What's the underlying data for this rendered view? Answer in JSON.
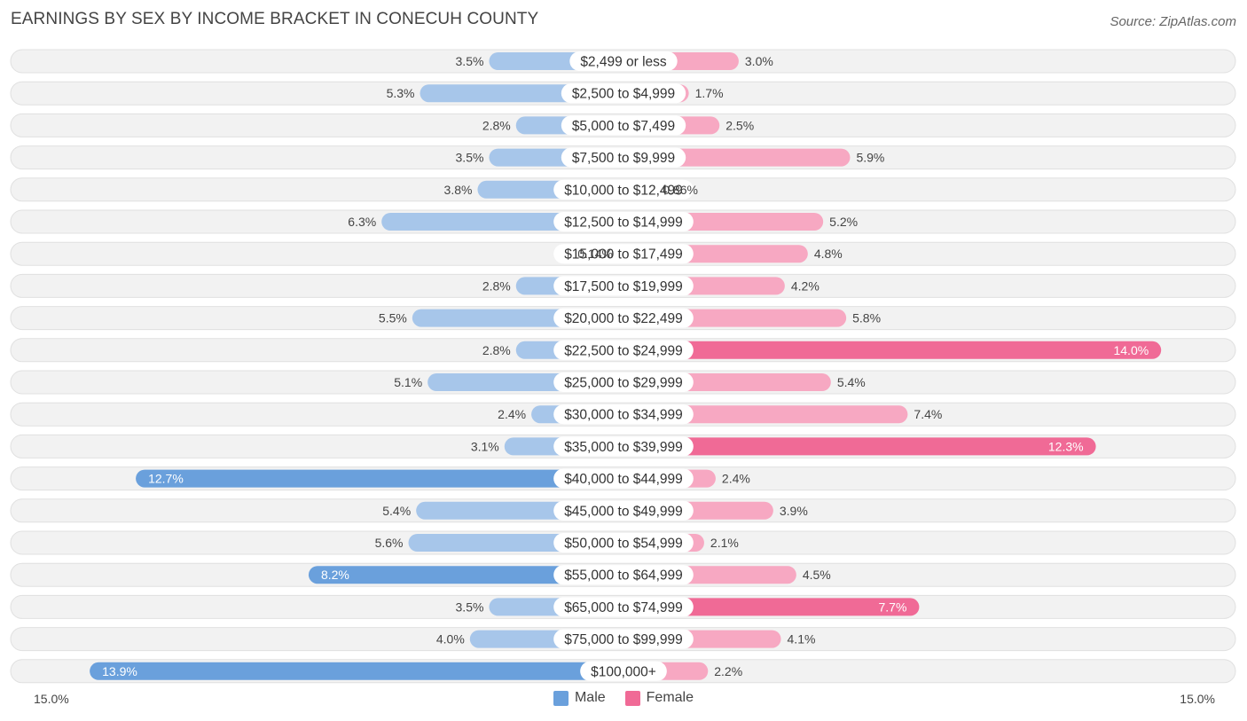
{
  "title": "EARNINGS BY SEX BY INCOME BRACKET IN CONECUH COUNTY",
  "source": "Source: ZipAtlas.com",
  "colors": {
    "male": "#6aa0dc",
    "male_light": "#a7c6ea",
    "female": "#f06a96",
    "female_light": "#f7a8c2"
  },
  "chart_data": {
    "type": "bar",
    "orientation": "horizontal-diverging",
    "categories": [
      "$2,499 or less",
      "$2,500 to $4,999",
      "$5,000 to $7,499",
      "$7,500 to $9,999",
      "$10,000 to $12,499",
      "$12,500 to $14,999",
      "$15,000 to $17,499",
      "$17,500 to $19,999",
      "$20,000 to $22,499",
      "$22,500 to $24,999",
      "$25,000 to $29,999",
      "$30,000 to $34,999",
      "$35,000 to $39,999",
      "$40,000 to $44,999",
      "$45,000 to $49,999",
      "$50,000 to $54,999",
      "$55,000 to $64,999",
      "$65,000 to $74,999",
      "$75,000 to $99,999",
      "$100,000+"
    ],
    "series": [
      {
        "name": "Male",
        "values": [
          3.5,
          5.3,
          2.8,
          3.5,
          3.8,
          6.3,
          0.14,
          2.8,
          5.5,
          2.8,
          5.1,
          2.4,
          3.1,
          12.7,
          5.4,
          5.6,
          8.2,
          3.5,
          4.0,
          13.9
        ],
        "labels": [
          "3.5%",
          "5.3%",
          "2.8%",
          "3.5%",
          "3.8%",
          "6.3%",
          "0.14%",
          "2.8%",
          "5.5%",
          "2.8%",
          "5.1%",
          "2.4%",
          "3.1%",
          "12.7%",
          "5.4%",
          "5.6%",
          "8.2%",
          "3.5%",
          "4.0%",
          "13.9%"
        ]
      },
      {
        "name": "Female",
        "values": [
          3.0,
          1.7,
          2.5,
          5.9,
          0.86,
          5.2,
          4.8,
          4.2,
          5.8,
          14.0,
          5.4,
          7.4,
          12.3,
          2.4,
          3.9,
          2.1,
          4.5,
          7.7,
          4.1,
          2.2
        ],
        "labels": [
          "3.0%",
          "1.7%",
          "2.5%",
          "5.9%",
          "0.86%",
          "5.2%",
          "4.8%",
          "4.2%",
          "5.8%",
          "14.0%",
          "5.4%",
          "7.4%",
          "12.3%",
          "2.4%",
          "3.9%",
          "2.1%",
          "4.5%",
          "7.7%",
          "4.1%",
          "2.2%"
        ]
      }
    ],
    "xlim": [
      -15.0,
      15.0
    ],
    "axis_labels": {
      "left": "15.0%",
      "right": "15.0%"
    },
    "legend": {
      "position": "bottom-center",
      "items": [
        "Male",
        "Female"
      ]
    }
  }
}
